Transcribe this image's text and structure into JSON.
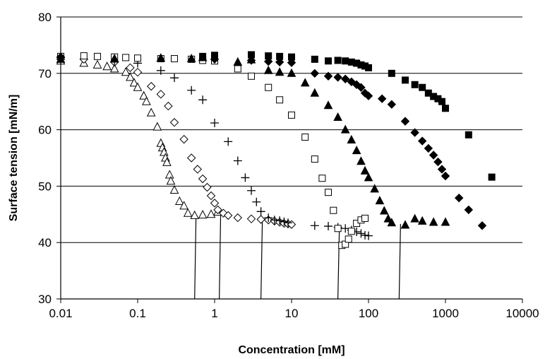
{
  "chart_data": {
    "type": "scatter",
    "title": "",
    "xlabel": "Concentration [mM]",
    "ylabel": "Surface tension [mN/m]",
    "x_scale": "log",
    "xlim": [
      0.01,
      10000
    ],
    "ylim": [
      30,
      80
    ],
    "x_ticks": [
      0.01,
      0.1,
      1,
      10,
      100,
      1000,
      10000
    ],
    "x_tick_labels": [
      "0.01",
      "0.1",
      "1",
      "10",
      "100",
      "1000",
      "10000"
    ],
    "y_ticks": [
      30,
      40,
      50,
      60,
      70,
      80
    ],
    "y_tick_labels": [
      "30",
      "40",
      "50",
      "60",
      "70",
      "80"
    ],
    "grid": "horizontal",
    "legend": "none",
    "series": [
      {
        "marker": "open-triangle",
        "points": [
          [
            0.01,
            72.2
          ],
          [
            0.02,
            71.8
          ],
          [
            0.03,
            71.5
          ],
          [
            0.04,
            71.2
          ],
          [
            0.05,
            70.8
          ],
          [
            0.07,
            70.2
          ],
          [
            0.08,
            69.3
          ],
          [
            0.09,
            68.3
          ],
          [
            0.1,
            67.5
          ],
          [
            0.12,
            66.0
          ],
          [
            0.13,
            65.0
          ],
          [
            0.15,
            63.0
          ],
          [
            0.18,
            60.5
          ],
          [
            0.2,
            57.6
          ],
          [
            0.21,
            56.8
          ],
          [
            0.22,
            56.0
          ],
          [
            0.23,
            55.0
          ],
          [
            0.24,
            54.2
          ],
          [
            0.26,
            52.0
          ],
          [
            0.27,
            50.9
          ],
          [
            0.3,
            49.3
          ],
          [
            0.35,
            47.3
          ],
          [
            0.4,
            46.5
          ],
          [
            0.45,
            45.2
          ],
          [
            0.55,
            44.8
          ],
          [
            0.7,
            44.9
          ],
          [
            0.9,
            45.0
          ],
          [
            1.1,
            45.4
          ]
        ]
      },
      {
        "marker": "open-diamond",
        "points": [
          [
            0.01,
            72.8
          ],
          [
            0.02,
            72.5
          ],
          [
            0.05,
            72.0
          ],
          [
            0.08,
            71.0
          ],
          [
            0.1,
            70.2
          ],
          [
            0.15,
            67.7
          ],
          [
            0.2,
            66.3
          ],
          [
            0.25,
            64.2
          ],
          [
            0.3,
            61.3
          ],
          [
            0.4,
            58.3
          ],
          [
            0.5,
            55.0
          ],
          [
            0.6,
            53.0
          ],
          [
            0.7,
            51.3
          ],
          [
            0.8,
            49.8
          ],
          [
            0.9,
            48.3
          ],
          [
            1.0,
            47.0
          ],
          [
            1.1,
            45.8
          ],
          [
            1.3,
            45.2
          ],
          [
            1.5,
            44.8
          ],
          [
            2.0,
            44.4
          ],
          [
            3.0,
            44.2
          ],
          [
            4.0,
            44.1
          ],
          [
            5.0,
            44.0
          ],
          [
            6.0,
            43.8
          ],
          [
            7.0,
            43.6
          ],
          [
            8.0,
            43.4
          ],
          [
            9.0,
            43.3
          ],
          [
            10,
            43.2
          ]
        ]
      },
      {
        "marker": "plus",
        "points": [
          [
            0.01,
            72.5
          ],
          [
            0.05,
            72.0
          ],
          [
            0.1,
            71.8
          ],
          [
            0.2,
            70.5
          ],
          [
            0.3,
            69.2
          ],
          [
            0.5,
            67.0
          ],
          [
            0.7,
            65.3
          ],
          [
            1.0,
            61.2
          ],
          [
            1.5,
            57.9
          ],
          [
            2.0,
            54.5
          ],
          [
            2.5,
            51.5
          ],
          [
            3.0,
            49.2
          ],
          [
            3.5,
            47.2
          ],
          [
            4.0,
            45.5
          ],
          [
            5.0,
            44.4
          ],
          [
            6.0,
            44.0
          ],
          [
            7.0,
            43.9
          ],
          [
            8.0,
            43.7
          ],
          [
            9.0,
            43.5
          ],
          [
            20,
            43.0
          ],
          [
            30,
            42.9
          ],
          [
            40,
            42.7
          ],
          [
            50,
            42.5
          ],
          [
            60,
            42.2
          ],
          [
            70,
            41.9
          ],
          [
            80,
            41.6
          ],
          [
            90,
            41.3
          ],
          [
            100,
            41.2
          ]
        ]
      },
      {
        "marker": "open-square",
        "points": [
          [
            0.01,
            73.0
          ],
          [
            0.02,
            73.1
          ],
          [
            0.03,
            73.0
          ],
          [
            0.05,
            72.9
          ],
          [
            0.07,
            72.8
          ],
          [
            0.1,
            72.7
          ],
          [
            0.2,
            72.6
          ],
          [
            0.3,
            72.6
          ],
          [
            0.5,
            72.5
          ],
          [
            0.7,
            72.3
          ],
          [
            1.0,
            72.2
          ],
          [
            2.0,
            70.8
          ],
          [
            3.0,
            69.5
          ],
          [
            5.0,
            67.5
          ],
          [
            7.0,
            65.3
          ],
          [
            10,
            62.6
          ],
          [
            15,
            58.7
          ],
          [
            20,
            54.8
          ],
          [
            25,
            51.4
          ],
          [
            30,
            48.9
          ],
          [
            35,
            45.7
          ],
          [
            40,
            42.5
          ],
          [
            45,
            39.5
          ],
          [
            50,
            39.7
          ],
          [
            55,
            40.6
          ],
          [
            60,
            42.0
          ],
          [
            70,
            43.4
          ],
          [
            80,
            44.0
          ],
          [
            90,
            44.3
          ]
        ]
      },
      {
        "marker": "filled-triangle",
        "points": [
          [
            0.01,
            72.5
          ],
          [
            0.05,
            72.6
          ],
          [
            0.2,
            72.7
          ],
          [
            0.5,
            72.6
          ],
          [
            0.7,
            72.8
          ],
          [
            2.0,
            72.0
          ],
          [
            3.0,
            72.4
          ],
          [
            5.0,
            70.5
          ],
          [
            7.0,
            70.2
          ],
          [
            10,
            70.0
          ],
          [
            15,
            68.3
          ],
          [
            20,
            66.5
          ],
          [
            30,
            64.3
          ],
          [
            40,
            62.2
          ],
          [
            50,
            60.0
          ],
          [
            60,
            58.2
          ],
          [
            70,
            56.3
          ],
          [
            80,
            54.4
          ],
          [
            90,
            52.7
          ],
          [
            100,
            51.5
          ],
          [
            120,
            49.5
          ],
          [
            140,
            47.4
          ],
          [
            160,
            45.6
          ],
          [
            180,
            44.2
          ],
          [
            200,
            43.5
          ],
          [
            300,
            43.1
          ],
          [
            400,
            44.2
          ],
          [
            500,
            43.8
          ],
          [
            700,
            43.6
          ],
          [
            1000,
            43.6
          ]
        ]
      },
      {
        "marker": "filled-diamond",
        "points": [
          [
            0.01,
            72.9
          ],
          [
            1.0,
            72.5
          ],
          [
            3.0,
            72.3
          ],
          [
            5.0,
            72.1
          ],
          [
            7.0,
            72.0
          ],
          [
            10,
            71.9
          ],
          [
            20,
            70.0
          ],
          [
            30,
            69.5
          ],
          [
            40,
            69.3
          ],
          [
            50,
            69.0
          ],
          [
            60,
            68.5
          ],
          [
            70,
            68.0
          ],
          [
            80,
            67.5
          ],
          [
            90,
            66.5
          ],
          [
            100,
            66.0
          ],
          [
            150,
            65.5
          ],
          [
            200,
            64.5
          ],
          [
            300,
            61.5
          ],
          [
            400,
            59.5
          ],
          [
            500,
            58.0
          ],
          [
            600,
            56.7
          ],
          [
            700,
            55.5
          ],
          [
            800,
            54.3
          ],
          [
            900,
            53.0
          ],
          [
            1000,
            51.8
          ],
          [
            1500,
            47.9
          ],
          [
            2000,
            45.8
          ],
          [
            3000,
            43.0
          ]
        ]
      },
      {
        "marker": "filled-square",
        "points": [
          [
            0.7,
            73.0
          ],
          [
            1.0,
            73.2
          ],
          [
            3.0,
            73.3
          ],
          [
            5.0,
            73.1
          ],
          [
            7.0,
            73.0
          ],
          [
            10,
            72.9
          ],
          [
            20,
            72.5
          ],
          [
            30,
            72.2
          ],
          [
            40,
            72.3
          ],
          [
            50,
            72.2
          ],
          [
            60,
            72.0
          ],
          [
            70,
            71.8
          ],
          [
            80,
            71.5
          ],
          [
            90,
            71.3
          ],
          [
            100,
            71.0
          ],
          [
            200,
            70.0
          ],
          [
            300,
            68.8
          ],
          [
            400,
            68.0
          ],
          [
            500,
            67.5
          ],
          [
            600,
            66.5
          ],
          [
            700,
            65.9
          ],
          [
            800,
            65.5
          ],
          [
            900,
            65.0
          ],
          [
            1000,
            63.8
          ],
          [
            2000,
            59.1
          ],
          [
            4000,
            51.6
          ]
        ]
      }
    ],
    "cmc_lines": [
      0.55,
      1.15,
      4.0,
      40,
      250
    ]
  }
}
